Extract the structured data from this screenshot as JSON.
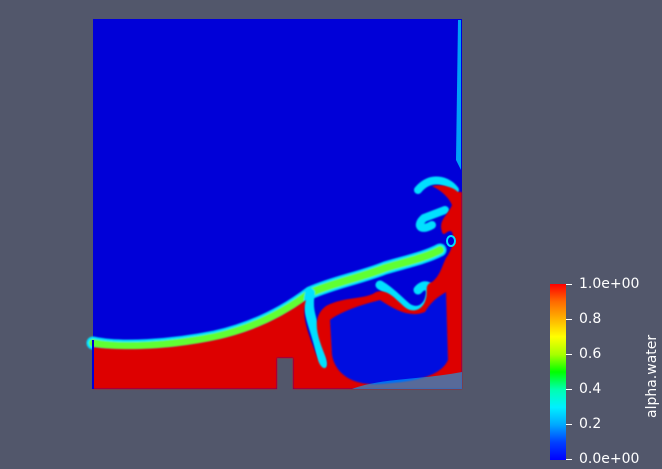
{
  "viewer": {
    "background_color": "#52576b",
    "colormap": [
      "#0000ff",
      "#00ffff",
      "#00ff00",
      "#ffff00",
      "#ff0000"
    ]
  },
  "scalar_bar": {
    "title": "alpha.water",
    "labels": [
      "1.0e+00",
      "0.8",
      "0.6",
      "0.4",
      "0.2",
      "0.0e+00"
    ]
  }
}
